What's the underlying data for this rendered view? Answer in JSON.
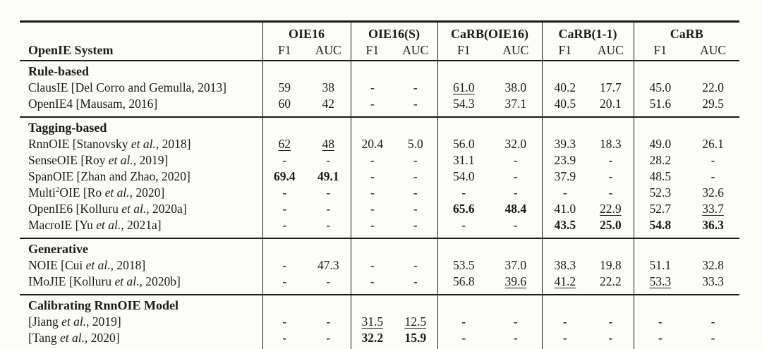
{
  "page": {
    "background_color": "#fbfbf8",
    "text_color": "#1b1b1b",
    "rule_color": "#191919"
  },
  "table": {
    "first_column_header": "OpenIE System",
    "groups": [
      "OIE16",
      "OIE16(S)",
      "CaRB(OIE16)",
      "CaRB(1-1)",
      "CaRB"
    ],
    "sub_headers": [
      "F1",
      "AUC"
    ],
    "legend": {
      "bold_means": "best score",
      "underline_means": "second-best score"
    },
    "sections": [
      {
        "label": "Rule-based",
        "rows": [
          {
            "system": [
              {
                "t": "ClausIE [Del Corro and Gemulla, 2013]"
              }
            ],
            "values": [
              "59",
              "38",
              "-",
              "-",
              {
                "t": "61.0",
                "s": "u"
              },
              "38.0",
              "40.2",
              "17.7",
              "45.0",
              "22.0"
            ]
          },
          {
            "system": [
              {
                "t": "OpenIE4 [Mausam, 2016]"
              }
            ],
            "values": [
              "60",
              "42",
              "-",
              "-",
              "54.3",
              "37.1",
              "40.5",
              "20.1",
              "51.6",
              "29.5"
            ]
          }
        ]
      },
      {
        "label": "Tagging-based",
        "rows": [
          {
            "system": [
              {
                "t": "RnnOIE [Stanovsky "
              },
              {
                "t": "et al.",
                "i": true
              },
              {
                "t": ", 2018]"
              }
            ],
            "values": [
              {
                "t": "62",
                "s": "u"
              },
              {
                "t": "48",
                "s": "u"
              },
              "20.4",
              "5.0",
              "56.0",
              "32.0",
              "39.3",
              "18.3",
              "49.0",
              "26.1"
            ]
          },
          {
            "system": [
              {
                "t": "SenseOIE [Roy "
              },
              {
                "t": "et al.",
                "i": true
              },
              {
                "t": ", 2019]"
              }
            ],
            "values": [
              "-",
              "-",
              "-",
              "-",
              "31.1",
              "-",
              "23.9",
              "-",
              "28.2",
              "-"
            ]
          },
          {
            "system": [
              {
                "t": "SpanOIE [Zhan and Zhao, 2020]"
              }
            ],
            "values": [
              {
                "t": "69.4",
                "s": "b"
              },
              {
                "t": "49.1",
                "s": "b"
              },
              "-",
              "-",
              "54.0",
              "-",
              "37.9",
              "-",
              "48.5",
              "-"
            ]
          },
          {
            "system": [
              {
                "t": "Multi"
              },
              {
                "t": "2",
                "sup": true
              },
              {
                "t": "OIE [Ro "
              },
              {
                "t": "et al.",
                "i": true
              },
              {
                "t": ", 2020]"
              }
            ],
            "values": [
              "-",
              "-",
              "-",
              "-",
              "-",
              "-",
              "-",
              "-",
              "52.3",
              "32.6"
            ]
          },
          {
            "system": [
              {
                "t": "OpenIE6 [Kolluru "
              },
              {
                "t": "et al.",
                "i": true
              },
              {
                "t": ", 2020a]"
              }
            ],
            "values": [
              "-",
              "-",
              "-",
              "-",
              {
                "t": "65.6",
                "s": "b"
              },
              {
                "t": "48.4",
                "s": "b"
              },
              "41.0",
              {
                "t": "22.9",
                "s": "u"
              },
              "52.7",
              {
                "t": "33.7",
                "s": "u"
              }
            ]
          },
          {
            "system": [
              {
                "t": "MacroIE [Yu "
              },
              {
                "t": "et al.",
                "i": true
              },
              {
                "t": ", 2021a]"
              }
            ],
            "values": [
              "-",
              "-",
              "-",
              "-",
              "-",
              "-",
              {
                "t": "43.5",
                "s": "b"
              },
              {
                "t": "25.0",
                "s": "b"
              },
              {
                "t": "54.8",
                "s": "b"
              },
              {
                "t": "36.3",
                "s": "b"
              }
            ]
          }
        ]
      },
      {
        "label": "Generative",
        "rows": [
          {
            "system": [
              {
                "t": "NOIE [Cui "
              },
              {
                "t": "et al.",
                "i": true
              },
              {
                "t": ", 2018]"
              }
            ],
            "values": [
              "-",
              "47.3",
              "-",
              "-",
              "53.5",
              "37.0",
              "38.3",
              "19.8",
              "51.1",
              "32.8"
            ]
          },
          {
            "system": [
              {
                "t": "IMoJIE [Kolluru "
              },
              {
                "t": "et al.",
                "i": true
              },
              {
                "t": ", 2020b]"
              }
            ],
            "values": [
              "-",
              "-",
              "-",
              "-",
              "56.8",
              {
                "t": "39.6",
                "s": "u"
              },
              {
                "t": "41.2",
                "s": "u"
              },
              "22.2",
              {
                "t": "53.3",
                "s": "u"
              },
              "33.3"
            ]
          }
        ]
      },
      {
        "label": "Calibrating RnnOIE Model",
        "rows": [
          {
            "system": [
              {
                "t": "[Jiang "
              },
              {
                "t": "et al.",
                "i": true
              },
              {
                "t": ", 2019]"
              }
            ],
            "values": [
              "-",
              "-",
              {
                "t": "31.5",
                "s": "u"
              },
              {
                "t": "12.5",
                "s": "u"
              },
              "-",
              "-",
              "-",
              "-",
              "-",
              "-"
            ]
          },
          {
            "system": [
              {
                "t": "[Tang "
              },
              {
                "t": "et al.",
                "i": true
              },
              {
                "t": ", 2020]"
              }
            ],
            "values": [
              "-",
              "-",
              {
                "t": "32.2",
                "s": "b"
              },
              {
                "t": "15.9",
                "s": "b"
              },
              "-",
              "-",
              "-",
              "-",
              "-",
              "-"
            ]
          }
        ]
      }
    ]
  }
}
